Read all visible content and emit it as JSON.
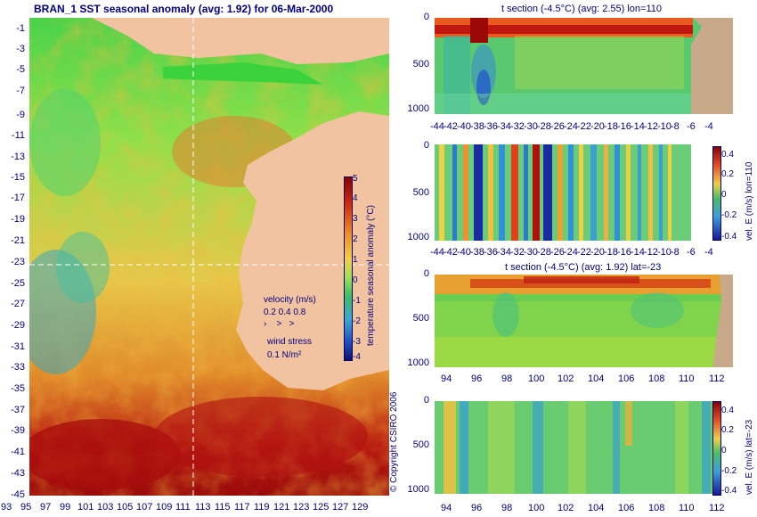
{
  "map": {
    "title": "BRAN_1 SST seasonal anomaly (avg: 1.92) for 06-Mar-2000",
    "lat_ticks": [
      "-1",
      "-3",
      "-5",
      "-7",
      "-9",
      "-11",
      "-13",
      "-15",
      "-17",
      "-19",
      "-21",
      "-23",
      "-25",
      "-27",
      "-29",
      "-31",
      "-33",
      "-35",
      "-37",
      "-39",
      "-41",
      "-43",
      "-45"
    ],
    "lon_ticks": [
      "93",
      "95",
      "97",
      "99",
      "101",
      "103",
      "105",
      "107",
      "109",
      "111",
      "113",
      "115",
      "117",
      "119",
      "121",
      "123",
      "125",
      "127",
      "129"
    ],
    "colorbar": {
      "ticks": [
        "5",
        "4",
        "3",
        "2",
        "1",
        "0",
        "-1",
        "-2",
        "-3",
        "-4"
      ],
      "label": "temperature seasonal anomaly (°C)"
    },
    "legend": {
      "velocity_label": "velocity (m/s)",
      "velocity_scale": "0.2 0.4 0.8",
      "wind_label": "wind stress",
      "wind_scale": "0.1 N/m²"
    },
    "copyright": "© Copyright CSIRO 2006"
  },
  "panels": [
    {
      "title": "t section (-4.5°C) (avg: 2.55) lon=110",
      "y_ticks": [
        "0",
        "500",
        "1000"
      ],
      "x_ticks": [
        "-44",
        "-42",
        "-40",
        "-38",
        "-36",
        "-34",
        "-32",
        "-30",
        "-28",
        "-26",
        "-24",
        "-22",
        "-20",
        "-18",
        "-16",
        "-14",
        "-12",
        "-10",
        "-8",
        "-6",
        "-4"
      ]
    },
    {
      "title": "",
      "y_ticks": [
        "0",
        "500",
        "1000"
      ],
      "x_ticks": [
        "-44",
        "-42",
        "-40",
        "-38",
        "-36",
        "-34",
        "-32",
        "-30",
        "-28",
        "-26",
        "-24",
        "-22",
        "-20",
        "-18",
        "-16",
        "-14",
        "-12",
        "-10",
        "-8",
        "-6",
        "-4"
      ],
      "cb_ticks": [
        "0.4",
        "0.2",
        "0",
        "-0.2",
        "-0.4"
      ],
      "cb_label": "vel. E (m/s) lon=110"
    },
    {
      "title": "t section (-4.5°C) (avg: 1.92) lat=-23",
      "y_ticks": [
        "0",
        "500",
        "1000"
      ],
      "x_ticks": [
        "94",
        "96",
        "98",
        "100",
        "102",
        "104",
        "106",
        "108",
        "110",
        "112"
      ]
    },
    {
      "title": "",
      "y_ticks": [
        "0",
        "500",
        "1000"
      ],
      "x_ticks": [
        "94",
        "96",
        "98",
        "100",
        "102",
        "104",
        "106",
        "108",
        "110",
        "112"
      ],
      "cb_ticks": [
        "0.4",
        "0.2",
        "0",
        "-0.2",
        "-0.4"
      ],
      "cb_label": "vel. E (m/s) lat=-23"
    }
  ],
  "colors": {
    "land": "#f2c3a0",
    "section_land": "#c8a98a",
    "warm": "#b40000",
    "cold": "#1e3ca8",
    "text": "#000080"
  }
}
